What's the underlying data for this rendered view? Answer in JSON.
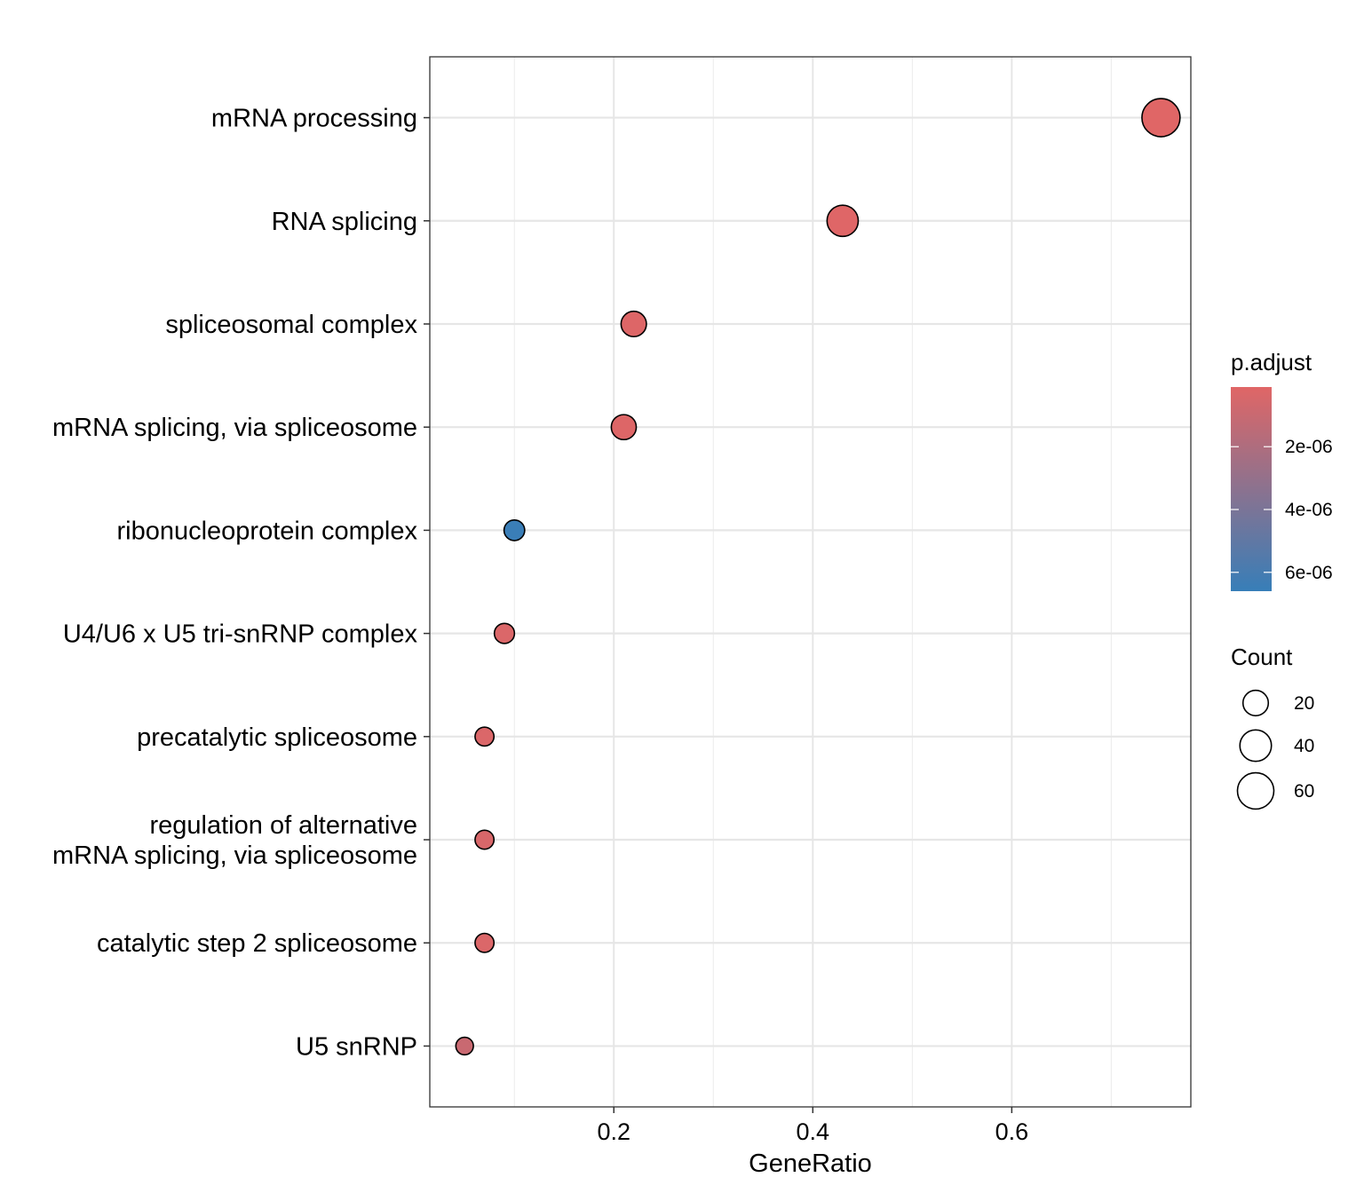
{
  "chart_data": {
    "type": "scatter",
    "title": "",
    "xlabel": "GeneRatio",
    "ylabel": "",
    "xlim": [
      0.015,
      0.78
    ],
    "x_ticks": [
      0.2,
      0.4,
      0.6
    ],
    "x_tick_labels": [
      "0.2",
      "0.4",
      "0.6"
    ],
    "grid": true,
    "categories": [
      [
        "mRNA processing"
      ],
      [
        "RNA splicing"
      ],
      [
        "spliceosomal complex"
      ],
      [
        "mRNA splicing, via spliceosome"
      ],
      [
        "ribonucleoprotein complex"
      ],
      [
        "U4/U6 x U5 tri-snRNP complex"
      ],
      [
        "precatalytic spliceosome"
      ],
      [
        "regulation of alternative",
        "mRNA splicing, via spliceosome"
      ],
      [
        "catalytic step 2 spliceosome"
      ],
      [
        "U5 snRNP"
      ]
    ],
    "gene_ratio": [
      0.75,
      0.43,
      0.22,
      0.21,
      0.1,
      0.09,
      0.07,
      0.07,
      0.07,
      0.05
    ],
    "count": [
      68,
      39,
      20,
      19,
      9,
      8,
      6,
      6,
      6,
      4
    ],
    "p_adjust": [
      1e-07,
      1.5e-07,
      2e-07,
      2e-07,
      6.5e-06,
      3e-07,
      3e-07,
      4e-07,
      3e-07,
      1e-06
    ],
    "legend_color": {
      "title": "p.adjust",
      "range": [
        1e-07,
        6.6e-06
      ],
      "ticks": [
        2e-06,
        4e-06,
        6e-06
      ],
      "tick_labels": [
        "2e-06",
        "4e-06",
        "6e-06"
      ],
      "low_color": "#E06666",
      "high_color": "#377EB8",
      "placement": "right"
    },
    "legend_size": {
      "title": "Count",
      "values": [
        20,
        40,
        60
      ],
      "labels": [
        "20",
        "40",
        "60"
      ],
      "placement": "right"
    }
  }
}
